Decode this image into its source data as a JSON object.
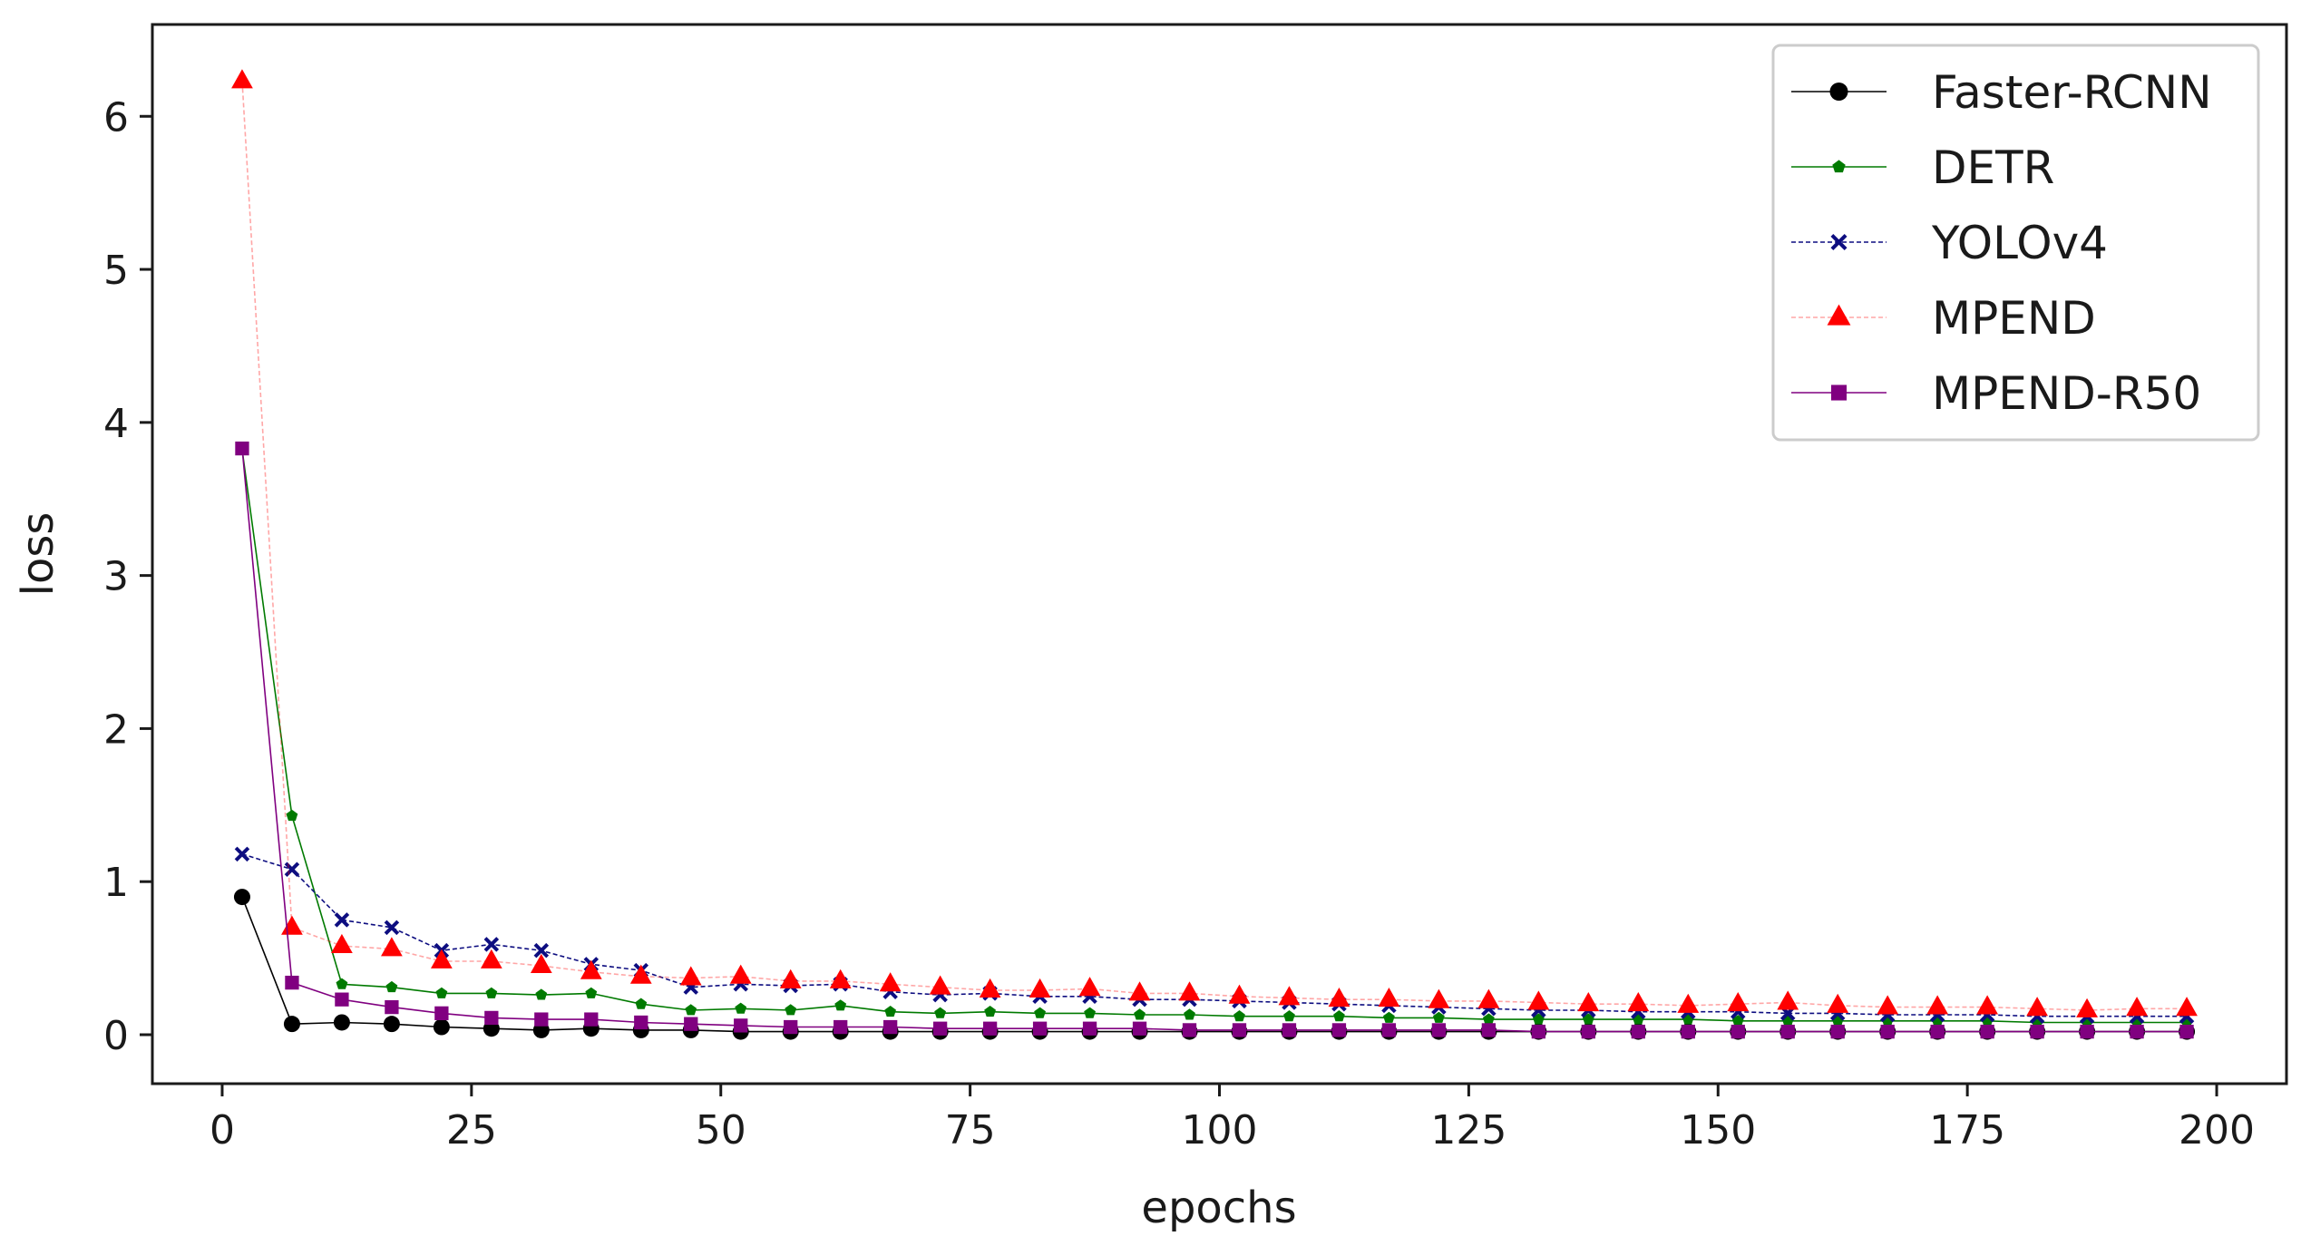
{
  "chart_data": {
    "type": "line",
    "title": "",
    "xlabel": "epochs",
    "ylabel": "loss",
    "xlim": [
      -7,
      207
    ],
    "ylim": [
      -0.32,
      6.6
    ],
    "xticks": [
      0,
      25,
      50,
      75,
      100,
      125,
      150,
      175,
      200
    ],
    "yticks": [
      0,
      1,
      2,
      3,
      4,
      5,
      6
    ],
    "grid": false,
    "legend_position": "top-right",
    "x": [
      2,
      7,
      12,
      17,
      22,
      27,
      32,
      37,
      42,
      47,
      52,
      57,
      62,
      67,
      72,
      77,
      82,
      87,
      92,
      97,
      102,
      107,
      112,
      117,
      122,
      127,
      132,
      137,
      142,
      147,
      152,
      157,
      162,
      167,
      172,
      177,
      182,
      187,
      192,
      197
    ],
    "series": [
      {
        "name": "Faster-RCNN",
        "color": "#000000",
        "marker": "circle",
        "values": [
          0.9,
          0.07,
          0.08,
          0.07,
          0.05,
          0.04,
          0.03,
          0.04,
          0.03,
          0.03,
          0.02,
          0.02,
          0.02,
          0.02,
          0.02,
          0.02,
          0.02,
          0.02,
          0.02,
          0.02,
          0.02,
          0.02,
          0.02,
          0.02,
          0.02,
          0.02,
          0.02,
          0.02,
          0.02,
          0.02,
          0.02,
          0.02,
          0.02,
          0.02,
          0.02,
          0.02,
          0.02,
          0.02,
          0.02,
          0.02
        ]
      },
      {
        "name": "DETR",
        "color": "#007a00",
        "marker": "pentagon",
        "values": [
          3.82,
          1.43,
          0.33,
          0.31,
          0.27,
          0.27,
          0.26,
          0.27,
          0.2,
          0.16,
          0.17,
          0.16,
          0.19,
          0.15,
          0.14,
          0.15,
          0.14,
          0.14,
          0.13,
          0.13,
          0.12,
          0.12,
          0.12,
          0.11,
          0.11,
          0.1,
          0.1,
          0.1,
          0.1,
          0.1,
          0.09,
          0.09,
          0.09,
          0.09,
          0.09,
          0.09,
          0.08,
          0.08,
          0.08,
          0.08
        ]
      },
      {
        "name": "YOLOv4",
        "color": "#0d0d80",
        "marker": "x",
        "values": [
          1.18,
          1.08,
          0.75,
          0.7,
          0.55,
          0.59,
          0.55,
          0.46,
          0.42,
          0.31,
          0.33,
          0.32,
          0.33,
          0.28,
          0.26,
          0.27,
          0.25,
          0.25,
          0.23,
          0.23,
          0.22,
          0.21,
          0.2,
          0.19,
          0.18,
          0.17,
          0.16,
          0.16,
          0.15,
          0.15,
          0.15,
          0.14,
          0.14,
          0.13,
          0.13,
          0.13,
          0.12,
          0.12,
          0.12,
          0.12
        ]
      },
      {
        "name": "MPEND",
        "color": "#ff0000",
        "marker": "triangle",
        "values": [
          6.23,
          0.7,
          0.58,
          0.56,
          0.48,
          0.48,
          0.45,
          0.41,
          0.38,
          0.37,
          0.38,
          0.35,
          0.35,
          0.33,
          0.31,
          0.29,
          0.29,
          0.3,
          0.27,
          0.27,
          0.25,
          0.24,
          0.23,
          0.23,
          0.22,
          0.22,
          0.21,
          0.2,
          0.2,
          0.19,
          0.2,
          0.21,
          0.19,
          0.18,
          0.18,
          0.18,
          0.17,
          0.16,
          0.17,
          0.17
        ]
      },
      {
        "name": "MPEND-R50",
        "color": "#800080",
        "marker": "square",
        "values": [
          3.83,
          0.34,
          0.23,
          0.18,
          0.14,
          0.11,
          0.1,
          0.1,
          0.08,
          0.07,
          0.06,
          0.05,
          0.05,
          0.05,
          0.04,
          0.04,
          0.04,
          0.04,
          0.04,
          0.03,
          0.03,
          0.03,
          0.03,
          0.03,
          0.03,
          0.03,
          0.02,
          0.02,
          0.02,
          0.02,
          0.02,
          0.02,
          0.02,
          0.02,
          0.02,
          0.02,
          0.02,
          0.02,
          0.02,
          0.02
        ]
      }
    ]
  }
}
